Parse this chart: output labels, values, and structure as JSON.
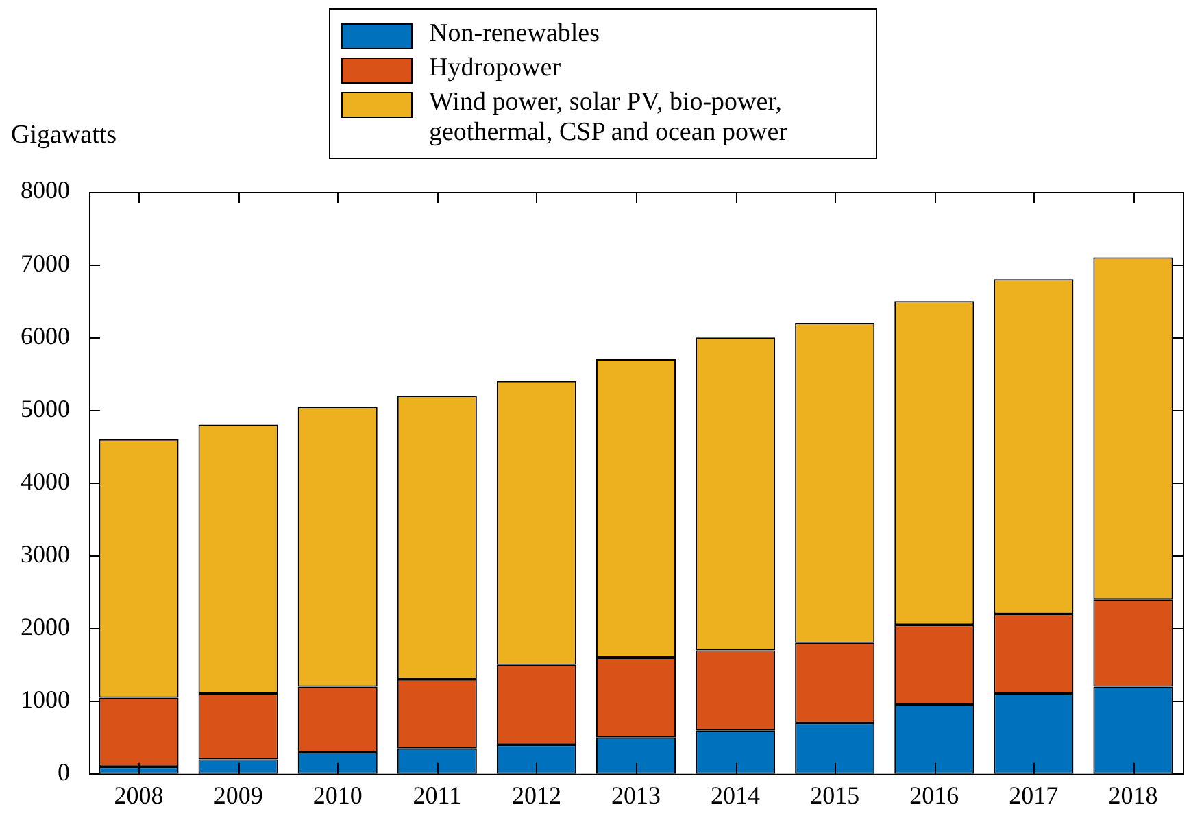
{
  "chart_data": {
    "type": "bar",
    "stacked": true,
    "ylabel": "Gigawatts",
    "legend": "top",
    "categories": [
      "2008",
      "2009",
      "2010",
      "2011",
      "2012",
      "2013",
      "2014",
      "2015",
      "2016",
      "2017",
      "2018"
    ],
    "series": [
      {
        "name": "Non-renewables",
        "color": "#0072bd",
        "values": [
          100,
          200,
          300,
          350,
          400,
          500,
          600,
          700,
          950,
          1100,
          1200
        ]
      },
      {
        "name": "Hydropower",
        "color": "#d95319",
        "values": [
          950,
          900,
          900,
          950,
          1100,
          1100,
          1100,
          1100,
          1100,
          1100,
          1200
        ]
      },
      {
        "name": "Wind power, solar PV, bio-power, geothermal, CSP and ocean power",
        "color": "#edb120",
        "values": [
          3550,
          3700,
          3850,
          3900,
          3900,
          4100,
          4300,
          4400,
          4450,
          4600,
          4700
        ]
      }
    ],
    "ylim": [
      0,
      8000
    ],
    "yticks": [
      0,
      1000,
      2000,
      3000,
      4000,
      5000,
      6000,
      7000,
      8000
    ],
    "grid": false
  }
}
